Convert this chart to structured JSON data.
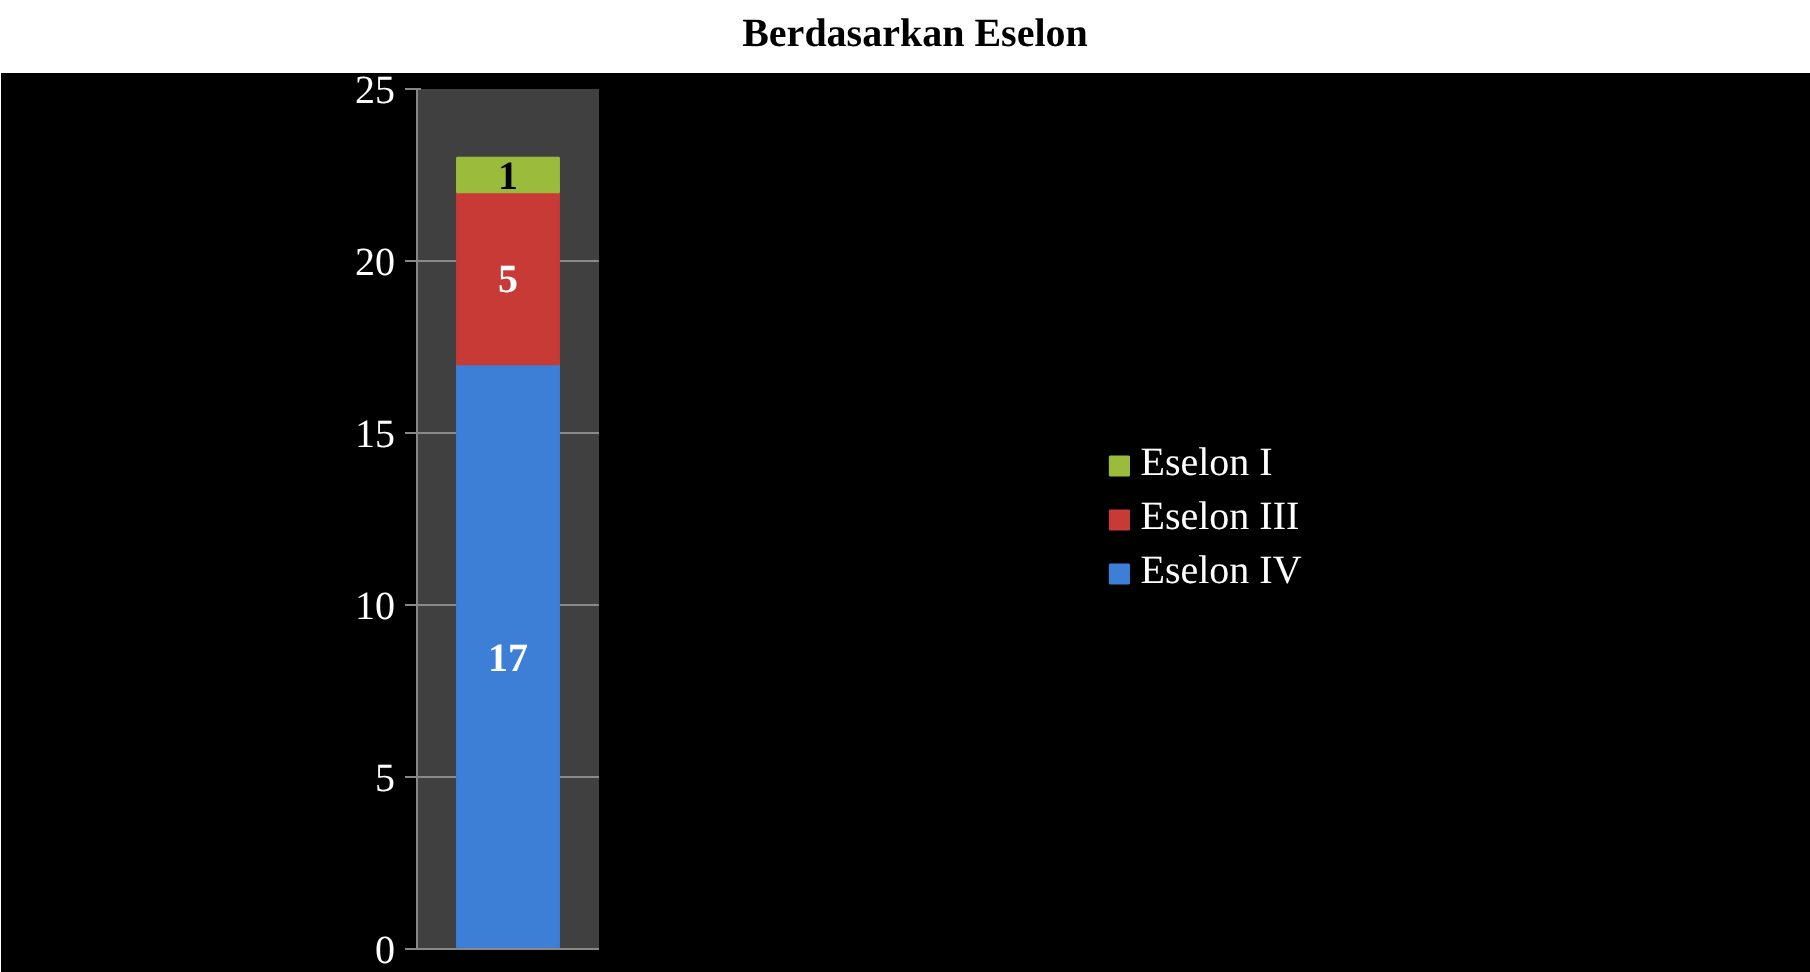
{
  "chart_data": {
    "type": "bar",
    "title": "Berdasarkan Eselon",
    "categories": [
      null
    ],
    "stacked": true,
    "series": [
      {
        "name": "Eselon IV",
        "color": "#3d7fd6",
        "values": [
          17
        ]
      },
      {
        "name": "Eselon III",
        "color": "#c83a36",
        "values": [
          5
        ]
      },
      {
        "name": "Eselon I",
        "color": "#9bbb3c",
        "values": [
          1
        ]
      }
    ],
    "ylim": [
      0,
      25
    ],
    "yticks": [
      0,
      5,
      10,
      15,
      20,
      25
    ],
    "grid": "y",
    "legend": "right",
    "data_labels": true
  }
}
